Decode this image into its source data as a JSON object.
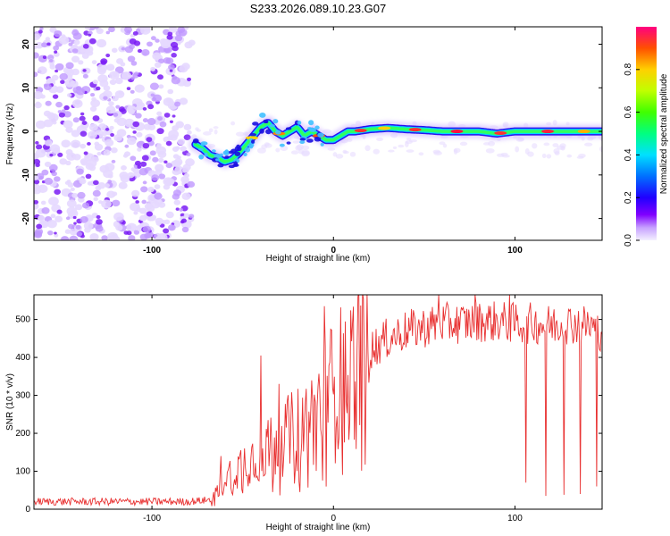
{
  "title": "S233.2026.089.10.23.G07",
  "chart_data": [
    {
      "type": "heatmap",
      "name": "spectrogram",
      "xlabel": "Height of straight line (km)",
      "ylabel": "Frequency (Hz)",
      "xlim": [
        -165,
        148
      ],
      "ylim": [
        -25,
        24
      ],
      "x_ticks": [
        -100,
        0,
        100
      ],
      "x_tick_labels": [
        "-100",
        "0",
        "100"
      ],
      "y_ticks": [
        -20,
        -10,
        0,
        10,
        20
      ],
      "y_tick_labels": [
        "-20",
        "-10",
        "0",
        "10",
        "20"
      ],
      "noise_region_x": [
        -165,
        -78
      ],
      "ridge": {
        "x": [
          -76,
          -72,
          -68,
          -64,
          -60,
          -56,
          -52,
          -48,
          -44,
          -40,
          -36,
          -32,
          -28,
          -24,
          -20,
          -16,
          -12,
          -8,
          -4,
          0,
          4,
          8,
          12,
          20,
          30,
          40,
          50,
          60,
          70,
          80,
          90,
          100,
          110,
          120,
          130,
          140,
          148
        ],
        "y": [
          -3,
          -4,
          -5.5,
          -6,
          -7,
          -6.5,
          -5,
          -3,
          -1,
          1,
          2,
          0,
          -1,
          0,
          1,
          -1,
          0,
          -1,
          -2,
          -2,
          -1,
          0,
          0,
          0.5,
          0.8,
          0.5,
          0.3,
          0,
          0,
          0,
          -0.5,
          0,
          0,
          0,
          0,
          0,
          0
        ]
      },
      "colorbar": {
        "label": "Normalized spectral amplitude",
        "range": [
          0,
          1
        ],
        "ticks": [
          0.0,
          0.2,
          0.4,
          0.6,
          0.8
        ],
        "tick_labels": [
          "0.0",
          "0.2",
          "0.4",
          "0.6",
          "0.8"
        ]
      }
    },
    {
      "type": "line",
      "name": "snr",
      "xlabel": "Height of straight line (km)",
      "ylabel": "SNR (10 * v/v)",
      "xlim": [
        -165,
        148
      ],
      "ylim": [
        0,
        565
      ],
      "x_ticks": [
        -100,
        0,
        100
      ],
      "x_tick_labels": [
        "-100",
        "0",
        "100"
      ],
      "y_ticks": [
        0,
        100,
        200,
        300,
        400,
        500
      ],
      "y_tick_labels": [
        "0",
        "100",
        "200",
        "300",
        "400",
        "500"
      ],
      "color": "#e83030",
      "envelope": {
        "x": [
          -165,
          -80,
          -67,
          -60,
          -50,
          -40,
          -30,
          -20,
          -10,
          0,
          10,
          20,
          30,
          40,
          50,
          60,
          70,
          80,
          90,
          100,
          110,
          120,
          130,
          140,
          148
        ],
        "y": [
          20,
          20,
          25,
          80,
          120,
          150,
          180,
          210,
          250,
          330,
          380,
          420,
          450,
          470,
          480,
          490,
          490,
          495,
          495,
          490,
          490,
          485,
          490,
          485,
          470
        ]
      },
      "spikes": [
        {
          "x": -5,
          "y": 535
        },
        {
          "x": -40,
          "y": 405
        },
        {
          "x": -30,
          "y": 330
        },
        {
          "x": -62,
          "y": 140
        },
        {
          "x": 58,
          "y": 565
        },
        {
          "x": 78,
          "y": 565
        },
        {
          "x": 97,
          "y": 565
        }
      ],
      "dips": [
        {
          "x": 106,
          "y": 70
        },
        {
          "x": 117,
          "y": 35
        },
        {
          "x": 127,
          "y": 38
        },
        {
          "x": 136,
          "y": 40
        },
        {
          "x": 145,
          "y": 60
        }
      ]
    }
  ]
}
